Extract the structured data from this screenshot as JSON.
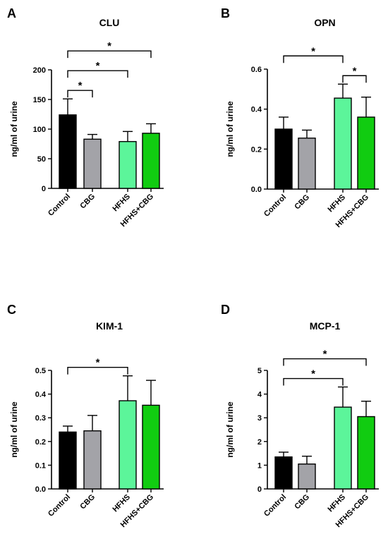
{
  "chart_data": [
    {
      "type": "bar",
      "panel": "A",
      "title": "CLU",
      "ylabel": "ng/ml of urine",
      "categories": [
        "Control",
        "CBG",
        "HFHS",
        "HFHS+CBG"
      ],
      "values": [
        124,
        83,
        79,
        93
      ],
      "errors": [
        27,
        8,
        17,
        16
      ],
      "colors": [
        "#000000",
        "#a3a3a8",
        "#5cf59a",
        "#11cc11"
      ],
      "ylim": [
        0,
        200
      ],
      "yticks": [
        "0",
        "50",
        "100",
        "150",
        "200"
      ],
      "significance": [
        {
          "from": 0,
          "to": 1,
          "label": "*"
        },
        {
          "from": 0,
          "to": 2,
          "label": "*"
        },
        {
          "from": 0,
          "to": 3,
          "label": "*"
        }
      ]
    },
    {
      "type": "bar",
      "panel": "B",
      "title": "OPN",
      "ylabel": "ng/ml of urine",
      "categories": [
        "Control",
        "CBG",
        "HFHS",
        "HFHS+CBG"
      ],
      "values": [
        0.3,
        0.255,
        0.455,
        0.36
      ],
      "errors": [
        0.06,
        0.04,
        0.07,
        0.1
      ],
      "colors": [
        "#000000",
        "#a3a3a8",
        "#5cf59a",
        "#11cc11"
      ],
      "ylim": [
        0,
        0.6
      ],
      "yticks": [
        "0.0",
        "0.2",
        "0.4",
        "0.6"
      ],
      "significance": [
        {
          "from": 0,
          "to": 2,
          "label": "*"
        },
        {
          "from": 2,
          "to": 3,
          "label": "*"
        }
      ]
    },
    {
      "type": "bar",
      "panel": "C",
      "title": "KIM-1",
      "ylabel": "ng/ml of urine",
      "categories": [
        "Control",
        "CBG",
        "HFHS",
        "HFHS+CBG"
      ],
      "values": [
        0.24,
        0.245,
        0.372,
        0.353
      ],
      "errors": [
        0.025,
        0.065,
        0.105,
        0.105
      ],
      "colors": [
        "#000000",
        "#a3a3a8",
        "#5cf59a",
        "#11cc11"
      ],
      "ylim": [
        0,
        0.5
      ],
      "yticks": [
        "0.0",
        "0.1",
        "0.2",
        "0.3",
        "0.4",
        "0.5"
      ],
      "significance": [
        {
          "from": 0,
          "to": 2,
          "label": "*"
        }
      ]
    },
    {
      "type": "bar",
      "panel": "D",
      "title": "MCP-1",
      "ylabel": "ng/ml of urine",
      "categories": [
        "Control",
        "CBG",
        "HFHS",
        "HFHS+CBG"
      ],
      "values": [
        1.35,
        1.05,
        3.45,
        3.05
      ],
      "errors": [
        0.2,
        0.33,
        0.85,
        0.65
      ],
      "colors": [
        "#000000",
        "#a3a3a8",
        "#5cf59a",
        "#11cc11"
      ],
      "ylim": [
        0,
        5
      ],
      "yticks": [
        "0",
        "1",
        "2",
        "3",
        "4",
        "5"
      ],
      "significance": [
        {
          "from": 0,
          "to": 2,
          "label": "*"
        },
        {
          "from": 0,
          "to": 3,
          "label": "*"
        }
      ]
    }
  ]
}
